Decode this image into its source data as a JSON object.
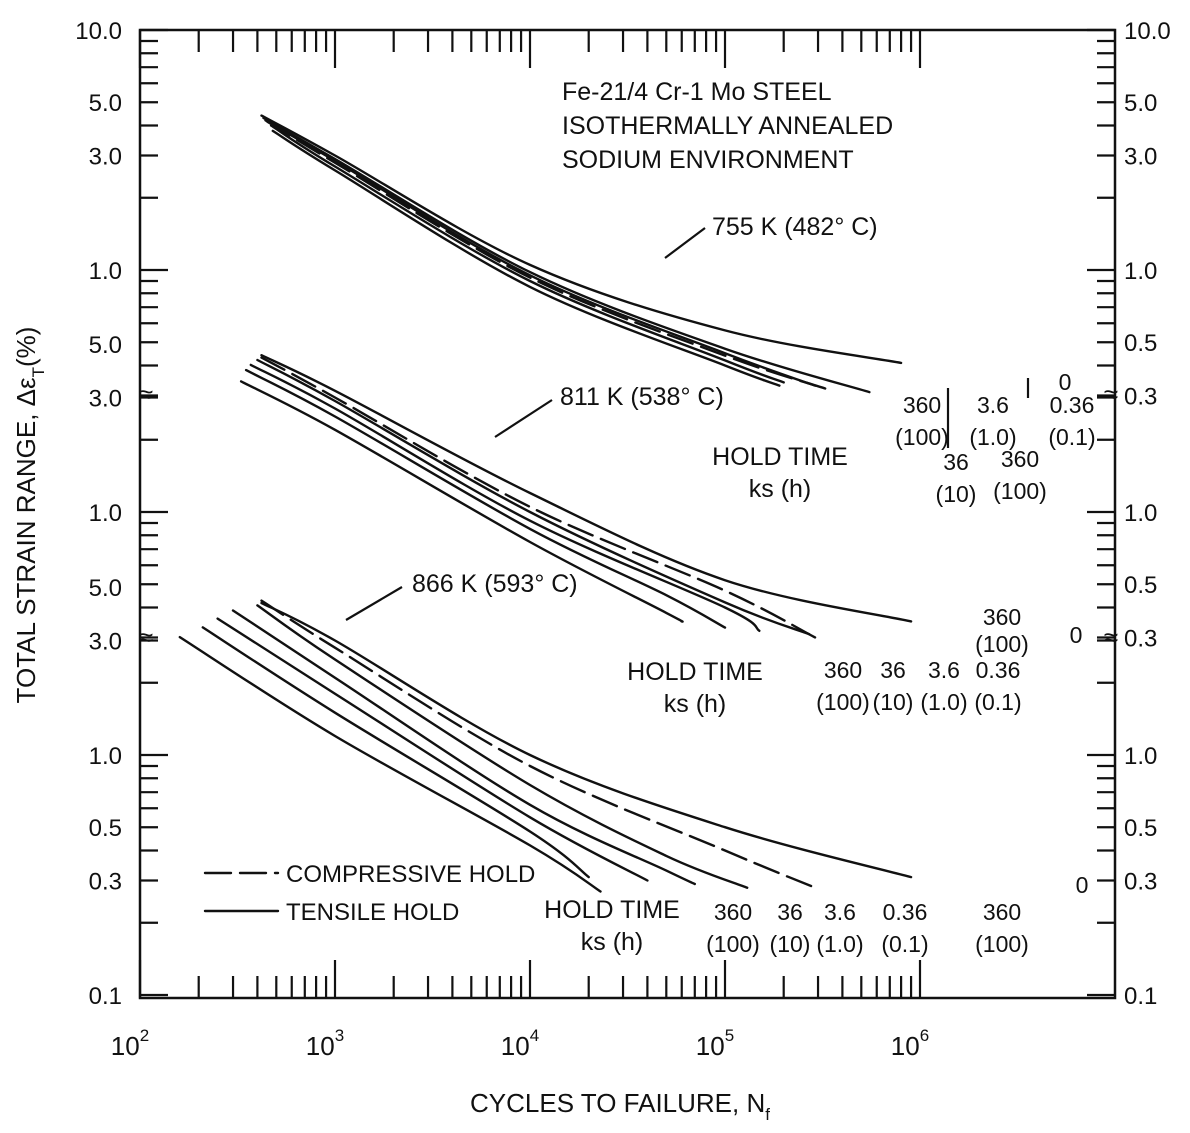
{
  "chart_data": {
    "type": "line",
    "title_lines": [
      "Fe-21/4 Cr-1 Mo STEEL",
      "ISOTHERMALLY ANNEALED",
      "SODIUM ENVIRONMENT"
    ],
    "xlabel": "CYCLES TO FAILURE, N",
    "xlabel_sub": "f",
    "ylabel": "TOTAL STRAIN RANGE, Δε",
    "ylabel_sub": "T",
    "ylabel_unit": "(%)",
    "xscale": "log",
    "xlim": [
      100,
      1000000
    ],
    "x_tick_labels": [
      {
        "value": 100,
        "base": "10",
        "exp": "2"
      },
      {
        "value": 1000,
        "base": "10",
        "exp": "3"
      },
      {
        "value": 10000,
        "base": "10",
        "exp": "4"
      },
      {
        "value": 100000,
        "base": "10",
        "exp": "5"
      },
      {
        "value": 1000000,
        "base": "10",
        "exp": "6"
      }
    ],
    "break_mark": "≈",
    "panels": [
      {
        "temperature_label": "755 K (482° C)",
        "ylim": [
          0.3,
          10.0
        ],
        "left_tick_labels": [
          {
            "v": 10.0,
            "t": "10.0"
          },
          {
            "v": 5.0,
            "t": "5.0"
          },
          {
            "v": 3.0,
            "t": "3.0"
          },
          {
            "v": 1.0,
            "t": "1.0"
          }
        ],
        "right_tick_labels": [
          {
            "v": 10.0,
            "t": "10.0"
          },
          {
            "v": 5.0,
            "t": "5.0"
          },
          {
            "v": 3.0,
            "t": "3.0"
          },
          {
            "v": 1.0,
            "t": "1.0"
          },
          {
            "v": 0.5,
            "t": "0.5"
          },
          {
            "v": 0.3,
            "t": "0.3"
          }
        ],
        "hold_time_title": [
          "HOLD TIME",
          "ks (h)"
        ],
        "series": [
          {
            "hold": "0",
            "style": "solid",
            "points": [
              [
                420,
                4.4
              ],
              [
                1000,
                3.0
              ],
              [
                10000,
                1.05
              ],
              [
                100000,
                0.56
              ],
              [
                800000,
                0.41
              ]
            ]
          },
          {
            "hold": "0.36 (0.1)",
            "style": "solid",
            "points": [
              [
                430,
                4.3
              ],
              [
                1000,
                2.9
              ],
              [
                10000,
                0.98
              ],
              [
                100000,
                0.47
              ],
              [
                550000,
                0.31
              ]
            ]
          },
          {
            "hold": "3.6 (1.0)",
            "style": "solid",
            "points": [
              [
                440,
                4.2
              ],
              [
                1000,
                2.85
              ],
              [
                10000,
                0.95
              ],
              [
                100000,
                0.45
              ],
              [
                290000,
                0.33
              ]
            ]
          },
          {
            "hold": "360 (100)",
            "style": "dashed",
            "points": [
              [
                450,
                4.15
              ],
              [
                1000,
                2.8
              ],
              [
                10000,
                0.93
              ],
              [
                100000,
                0.44
              ],
              [
                330000,
                0.32
              ]
            ]
          },
          {
            "hold": "36 (10)",
            "style": "solid",
            "points": [
              [
                470,
                4.0
              ],
              [
                1000,
                2.7
              ],
              [
                10000,
                0.9
              ],
              [
                100000,
                0.42
              ],
              [
                200000,
                0.34
              ]
            ]
          },
          {
            "hold": "360 (100)",
            "style": "solid",
            "points": [
              [
                480,
                3.8
              ],
              [
                1000,
                2.6
              ],
              [
                10000,
                0.85
              ],
              [
                100000,
                0.4
              ],
              [
                190000,
                0.33
              ]
            ]
          }
        ],
        "hold_labels": [
          {
            "top": "360",
            "bottom": "(100)",
            "ref": "solid"
          },
          {
            "top": "36",
            "bottom": "(10)",
            "ref": "solid"
          },
          {
            "top": "3.6",
            "bottom": "(1.0)",
            "ref": "solid"
          },
          {
            "top": "360",
            "bottom": "(100)",
            "ref": "dashed"
          },
          {
            "top": "0.36",
            "bottom": "(0.1)",
            "ref": "solid"
          },
          {
            "top": "0",
            "bottom": "",
            "ref": "solid"
          }
        ]
      },
      {
        "temperature_label": "811 K (538° C)",
        "ylim": [
          0.3,
          5.0
        ],
        "left_tick_labels": [
          {
            "v": 5.0,
            "t": "5.0"
          },
          {
            "v": 3.0,
            "t": "3.0"
          },
          {
            "v": 1.0,
            "t": "1.0"
          }
        ],
        "right_tick_labels": [
          {
            "v": 1.0,
            "t": "1.0"
          },
          {
            "v": 0.5,
            "t": "0.5"
          },
          {
            "v": 0.3,
            "t": "0.3"
          }
        ],
        "hold_time_title": [
          "HOLD TIME",
          "ks (h)"
        ],
        "series": [
          {
            "hold": "0",
            "style": "solid",
            "points": [
              [
                420,
                4.5
              ],
              [
                1000,
                3.2
              ],
              [
                10000,
                1.2
              ],
              [
                100000,
                0.52
              ],
              [
                900000,
                0.35
              ]
            ]
          },
          {
            "hold": "360 (100)",
            "style": "dashed",
            "points": [
              [
                420,
                4.4
              ],
              [
                1000,
                3.0
              ],
              [
                10000,
                1.05
              ],
              [
                100000,
                0.47
              ],
              [
                290000,
                0.3
              ]
            ]
          },
          {
            "hold": "0.36 (0.1)",
            "style": "solid",
            "points": [
              [
                400,
                4.3
              ],
              [
                1000,
                2.9
              ],
              [
                10000,
                1.0
              ],
              [
                100000,
                0.42
              ],
              [
                270000,
                0.31
              ]
            ]
          },
          {
            "hold": "3.6 (1.0)",
            "style": "solid",
            "points": [
              [
                370,
                4.1
              ],
              [
                1000,
                2.7
              ],
              [
                10000,
                0.92
              ],
              [
                100000,
                0.4
              ],
              [
                150000,
                0.32
              ]
            ]
          },
          {
            "hold": "36 (10)",
            "style": "solid",
            "points": [
              [
                350,
                3.9
              ],
              [
                1000,
                2.5
              ],
              [
                10000,
                0.85
              ],
              [
                50000,
                0.45
              ],
              [
                100000,
                0.33
              ]
            ]
          },
          {
            "hold": "360 (100)",
            "style": "solid",
            "points": [
              [
                330,
                3.5
              ],
              [
                1000,
                2.2
              ],
              [
                10000,
                0.75
              ],
              [
                50000,
                0.38
              ],
              [
                60000,
                0.35
              ]
            ]
          }
        ],
        "hold_labels": [
          {
            "top": "360",
            "bottom": "(100)",
            "ref": "solid"
          },
          {
            "top": "36",
            "bottom": "(10)",
            "ref": "solid"
          },
          {
            "top": "3.6",
            "bottom": "(1.0)",
            "ref": "solid"
          },
          {
            "top": "0.36",
            "bottom": "(0.1)",
            "ref": "solid"
          },
          {
            "top": "360",
            "bottom": "(100)",
            "ref": "dashed"
          },
          {
            "top": "0",
            "bottom": "",
            "ref": "solid"
          }
        ]
      },
      {
        "temperature_label": "866 K (593° C)",
        "ylim": [
          0.1,
          5.0
        ],
        "left_tick_labels": [
          {
            "v": 5.0,
            "t": "5.0"
          },
          {
            "v": 3.0,
            "t": "3.0"
          },
          {
            "v": 1.0,
            "t": "1.0"
          },
          {
            "v": 0.5,
            "t": "0.5"
          },
          {
            "v": 0.3,
            "t": "0.3"
          },
          {
            "v": 0.1,
            "t": "0.1"
          }
        ],
        "right_tick_labels": [
          {
            "v": 1.0,
            "t": "1.0"
          },
          {
            "v": 0.5,
            "t": "0.5"
          },
          {
            "v": 0.3,
            "t": "0.3"
          },
          {
            "v": 0.1,
            "t": "0.1"
          }
        ],
        "hold_time_title": [
          "HOLD TIME",
          "ks (h)"
        ],
        "series": [
          {
            "hold": "0",
            "style": "solid",
            "points": [
              [
                420,
                4.3
              ],
              [
                1000,
                3.0
              ],
              [
                10000,
                1.0
              ],
              [
                100000,
                0.5
              ],
              [
                900000,
                0.31
              ]
            ]
          },
          {
            "hold": "360 (100)",
            "style": "dashed",
            "points": [
              [
                420,
                4.4
              ],
              [
                1000,
                2.8
              ],
              [
                10000,
                0.9
              ],
              [
                100000,
                0.4
              ],
              [
                290000,
                0.28
              ]
            ]
          },
          {
            "hold": "0.36 (0.1)",
            "style": "solid",
            "points": [
              [
                400,
                4.2
              ],
              [
                1000,
                2.5
              ],
              [
                10000,
                0.75
              ],
              [
                50000,
                0.38
              ],
              [
                130000,
                0.28
              ]
            ]
          },
          {
            "hold": "3.6 (1.0)",
            "style": "solid",
            "points": [
              [
                300,
                4.0
              ],
              [
                1000,
                2.1
              ],
              [
                10000,
                0.62
              ],
              [
                50000,
                0.33
              ],
              [
                70000,
                0.29
              ]
            ]
          },
          {
            "hold": "36 (10)",
            "style": "solid",
            "points": [
              [
                250,
                3.7
              ],
              [
                1000,
                1.8
              ],
              [
                10000,
                0.55
              ],
              [
                40000,
                0.3
              ]
            ]
          },
          {
            "hold": "360 (100)",
            "style": "solid",
            "points": [
              [
                210,
                3.4
              ],
              [
                1000,
                1.5
              ],
              [
                10000,
                0.48
              ],
              [
                20000,
                0.31
              ]
            ]
          },
          {
            "hold": "",
            "style": "solid",
            "points": [
              [
                160,
                3.1
              ],
              [
                1000,
                1.2
              ],
              [
                10000,
                0.42
              ],
              [
                23000,
                0.27
              ]
            ]
          }
        ],
        "hold_labels": [
          {
            "top": "360",
            "bottom": "(100)",
            "ref": "solid"
          },
          {
            "top": "36",
            "bottom": "(10)",
            "ref": "solid"
          },
          {
            "top": "3.6",
            "bottom": "(1.0)",
            "ref": "solid"
          },
          {
            "top": "0.36",
            "bottom": "(0.1)",
            "ref": "solid"
          },
          {
            "top": "360",
            "bottom": "(100)",
            "ref": "dashed"
          },
          {
            "top": "0",
            "bottom": "",
            "ref": "solid"
          }
        ]
      }
    ],
    "legend": [
      {
        "label": "COMPRESSIVE HOLD",
        "style": "dashed"
      },
      {
        "label": "TENSILE HOLD",
        "style": "solid"
      }
    ]
  }
}
